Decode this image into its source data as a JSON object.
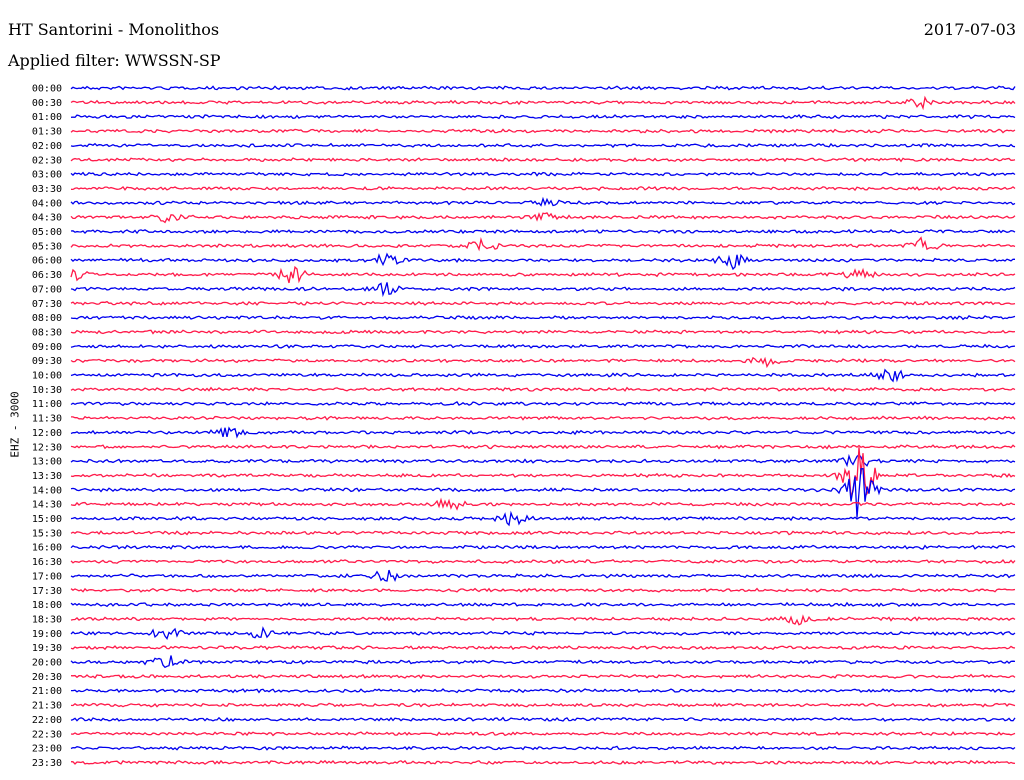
{
  "header": {
    "title": "HT Santorini - Monolithos",
    "date": "2017-07-03",
    "filter": "Applied filter: WWSSN-SP"
  },
  "chart_data": {
    "type": "line",
    "title": "HT Santorini - Monolithos",
    "subtitle": "Applied filter: WWSSN-SP",
    "ylabel": "EHZ - 3000",
    "rows": [
      "00:00",
      "00:30",
      "01:00",
      "01:30",
      "02:00",
      "02:30",
      "03:00",
      "03:30",
      "04:00",
      "04:30",
      "05:00",
      "05:30",
      "06:00",
      "06:30",
      "07:00",
      "07:30",
      "08:00",
      "08:30",
      "09:00",
      "09:30",
      "10:00",
      "10:30",
      "11:00",
      "11:30",
      "12:00",
      "12:30",
      "13:00",
      "13:30",
      "14:00",
      "14:30",
      "15:00",
      "15:30",
      "16:00",
      "16:30",
      "17:00",
      "17:30",
      "18:00",
      "18:30",
      "19:00",
      "19:30",
      "20:00",
      "20:30",
      "21:00",
      "21:30",
      "22:00",
      "22:30",
      "23:00",
      "23:30"
    ],
    "row_minutes": 30,
    "colors": [
      "#0000ee",
      "#ff1a4a"
    ],
    "grid": false,
    "legend": "none",
    "events": [
      {
        "row": "00:30",
        "minute": 27,
        "amplitude": 5
      },
      {
        "row": "04:00",
        "minute": 15,
        "amplitude": 4
      },
      {
        "row": "04:30",
        "minute": 3,
        "amplitude": 5
      },
      {
        "row": "04:30",
        "minute": 15,
        "amplitude": 5
      },
      {
        "row": "05:30",
        "minute": 13,
        "amplitude": 9
      },
      {
        "row": "05:30",
        "minute": 27,
        "amplitude": 7
      },
      {
        "row": "06:00",
        "minute": 10,
        "amplitude": 8
      },
      {
        "row": "06:00",
        "minute": 21,
        "amplitude": 10
      },
      {
        "row": "06:30",
        "minute": 0,
        "amplitude": 8
      },
      {
        "row": "06:30",
        "minute": 7,
        "amplitude": 9
      },
      {
        "row": "06:30",
        "minute": 25,
        "amplitude": 6
      },
      {
        "row": "07:00",
        "minute": 10,
        "amplitude": 7
      },
      {
        "row": "09:30",
        "minute": 22,
        "amplitude": 7
      },
      {
        "row": "10:00",
        "minute": 26,
        "amplitude": 8
      },
      {
        "row": "12:00",
        "minute": 5,
        "amplitude": 6
      },
      {
        "row": "13:00",
        "minute": 25,
        "amplitude": 8
      },
      {
        "row": "13:30",
        "minute": 25,
        "amplitude": 38
      },
      {
        "row": "14:00",
        "minute": 25,
        "amplitude": 32
      },
      {
        "row": "14:30",
        "minute": 12,
        "amplitude": 8
      },
      {
        "row": "15:00",
        "minute": 14,
        "amplitude": 7
      },
      {
        "row": "17:00",
        "minute": 10,
        "amplitude": 6
      },
      {
        "row": "18:30",
        "minute": 23,
        "amplitude": 6
      },
      {
        "row": "19:00",
        "minute": 3,
        "amplitude": 7
      },
      {
        "row": "19:00",
        "minute": 6,
        "amplitude": 6
      },
      {
        "row": "20:00",
        "minute": 3,
        "amplitude": 8
      }
    ]
  }
}
